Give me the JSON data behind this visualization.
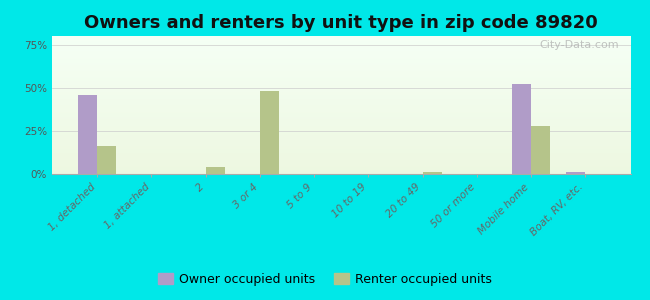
{
  "title": "Owners and renters by unit type in zip code 89820",
  "categories": [
    "1, detached",
    "1, attached",
    "2",
    "3 or 4",
    "5 to 9",
    "10 to 19",
    "20 to 49",
    "50 or more",
    "Mobile home",
    "Boat, RV, etc."
  ],
  "owner_values": [
    46,
    0,
    0,
    0,
    0,
    0,
    0,
    0,
    52,
    1
  ],
  "renter_values": [
    16,
    0,
    4,
    48,
    0,
    0,
    1,
    0,
    28,
    0
  ],
  "owner_color": "#b09cc8",
  "renter_color": "#b5c48a",
  "fig_bg_color": "#00e8e8",
  "yticks": [
    0,
    25,
    50,
    75
  ],
  "ylim": [
    0,
    80
  ],
  "bar_width": 0.35,
  "legend_owner": "Owner occupied units",
  "legend_renter": "Renter occupied units",
  "title_fontsize": 13,
  "tick_fontsize": 7.5,
  "legend_fontsize": 9,
  "watermark": "City-Data.com"
}
